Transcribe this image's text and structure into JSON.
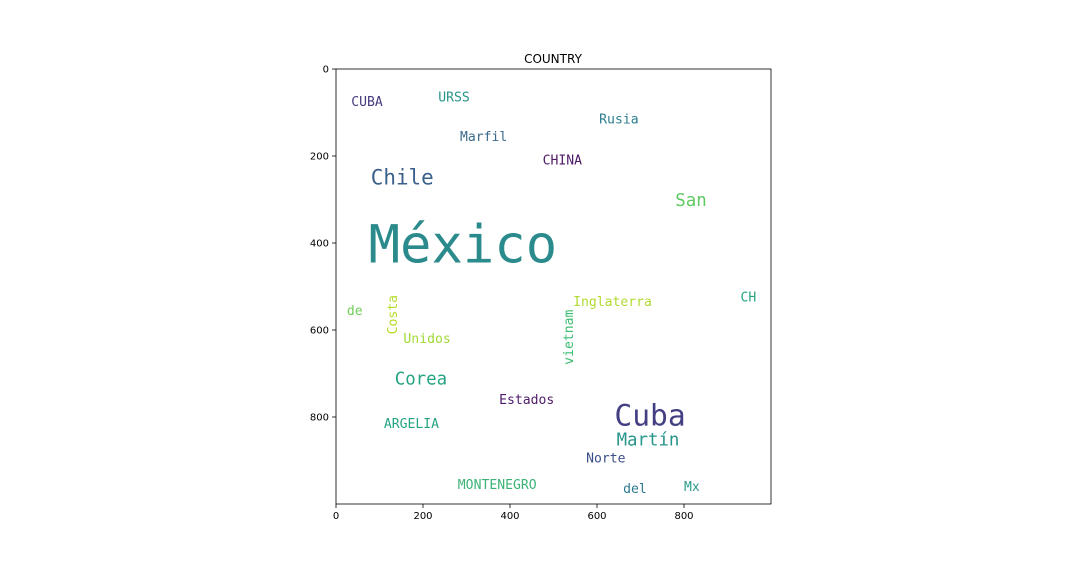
{
  "chart_data": {
    "type": "wordcloud",
    "title": "COUNTRY",
    "xlim": [
      0,
      1000
    ],
    "ylim": [
      1000,
      0
    ],
    "xticks": [
      0,
      200,
      400,
      600,
      800
    ],
    "yticks": [
      0,
      200,
      400,
      600,
      800
    ],
    "grid": false,
    "words": [
      {
        "text": "México",
        "x": 75,
        "y": 445,
        "size": 120,
        "color": "#2a8a8c",
        "rotate": 0
      },
      {
        "text": "Cuba",
        "x": 640,
        "y": 820,
        "size": 68,
        "color": "#433f83",
        "rotate": 0
      },
      {
        "text": "Chile",
        "x": 80,
        "y": 265,
        "size": 48,
        "color": "#3a5f8a",
        "rotate": 0
      },
      {
        "text": "Corea",
        "x": 135,
        "y": 725,
        "size": 40,
        "color": "#25a483",
        "rotate": 0
      },
      {
        "text": "San",
        "x": 780,
        "y": 315,
        "size": 40,
        "color": "#5ec963",
        "rotate": 0
      },
      {
        "text": "Martín",
        "x": 645,
        "y": 865,
        "size": 40,
        "color": "#26958a",
        "rotate": 0
      },
      {
        "text": "Marfil",
        "x": 285,
        "y": 165,
        "size": 30,
        "color": "#3b6b8c",
        "rotate": 0
      },
      {
        "text": "Rusia",
        "x": 605,
        "y": 125,
        "size": 30,
        "color": "#2c7e8e",
        "rotate": 0
      },
      {
        "text": "CHINA",
        "x": 475,
        "y": 220,
        "size": 30,
        "color": "#4f1a68",
        "rotate": 0
      },
      {
        "text": "CUBA",
        "x": 35,
        "y": 85,
        "size": 30,
        "color": "#453b7f",
        "rotate": 0
      },
      {
        "text": "URSS",
        "x": 235,
        "y": 75,
        "size": 30,
        "color": "#26958a",
        "rotate": 0
      },
      {
        "text": "CH",
        "x": 930,
        "y": 535,
        "size": 30,
        "color": "#25a483",
        "rotate": 0
      },
      {
        "text": "Inglaterra",
        "x": 545,
        "y": 545,
        "size": 30,
        "color": "#b0da30",
        "rotate": 0
      },
      {
        "text": "Unidos",
        "x": 155,
        "y": 630,
        "size": 30,
        "color": "#a0d83a",
        "rotate": 0
      },
      {
        "text": "de",
        "x": 25,
        "y": 565,
        "size": 30,
        "color": "#6fce57",
        "rotate": 0
      },
      {
        "text": "Costa",
        "x": 140,
        "y": 610,
        "size": 30,
        "color": "#b6dc2c",
        "rotate": -90
      },
      {
        "text": "vietnam",
        "x": 545,
        "y": 680,
        "size": 30,
        "color": "#3ebc73",
        "rotate": -90
      },
      {
        "text": "Estados",
        "x": 375,
        "y": 770,
        "size": 30,
        "color": "#4e1c6a",
        "rotate": 0
      },
      {
        "text": "ARGELIA",
        "x": 110,
        "y": 825,
        "size": 30,
        "color": "#25a483",
        "rotate": 0
      },
      {
        "text": "Norte",
        "x": 575,
        "y": 905,
        "size": 30,
        "color": "#3b4e89",
        "rotate": 0
      },
      {
        "text": "MONTENEGRO",
        "x": 280,
        "y": 965,
        "size": 30,
        "color": "#3cb375",
        "rotate": 0
      },
      {
        "text": "del",
        "x": 660,
        "y": 975,
        "size": 30,
        "color": "#2a788e",
        "rotate": 0
      },
      {
        "text": "Mx",
        "x": 800,
        "y": 970,
        "size": 30,
        "color": "#2a9a8a",
        "rotate": 0
      }
    ]
  }
}
